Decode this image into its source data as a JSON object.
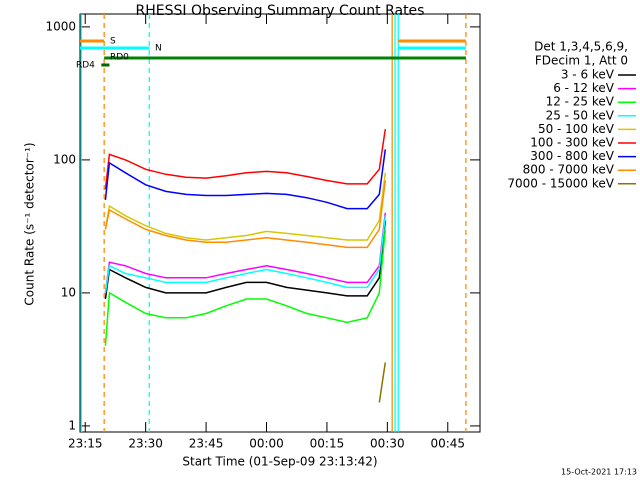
{
  "chart_data": {
    "type": "line",
    "title": "RHESSI Observing Summary Count Rates",
    "xlabel": "Start Time (01-Sep-09 23:13:42)",
    "ylabel": "Count Rate (s⁻¹ detector⁻¹)",
    "footer": "15-Oct-2021 17:13",
    "legend_header": [
      "Det 1,3,4,5,6,9,",
      "FDecim 1, Att 0"
    ],
    "log_y": true,
    "xlim": [
      13.7,
      113
    ],
    "ylim": [
      0.9,
      1250
    ],
    "xticks": [
      {
        "value": 15,
        "label": "23:15"
      },
      {
        "value": 30,
        "label": "23:30"
      },
      {
        "value": 45,
        "label": "23:45"
      },
      {
        "value": 60,
        "label": "00:00"
      },
      {
        "value": 75,
        "label": "00:15"
      },
      {
        "value": 90,
        "label": "00:30"
      },
      {
        "value": 105,
        "label": "00:45"
      }
    ],
    "yticks": [
      1,
      10,
      100,
      1000
    ],
    "x": [
      20,
      21,
      25,
      30,
      35,
      40,
      45,
      50,
      55,
      60,
      65,
      70,
      75,
      80,
      85,
      88,
      89.5
    ],
    "series": [
      {
        "name": "3 - 6 keV",
        "color": "#000000",
        "values": [
          9,
          15,
          13,
          11,
          10,
          10,
          10,
          11,
          12,
          12,
          11,
          10.5,
          10,
          9.5,
          9.5,
          13,
          35
        ]
      },
      {
        "name": "6 - 12 keV",
        "color": "#ff00ff",
        "values": [
          10,
          17,
          16,
          14,
          13,
          13,
          13,
          14,
          15,
          16,
          15,
          14,
          13,
          12,
          12,
          16,
          40
        ]
      },
      {
        "name": "12 - 25 keV",
        "color": "#00ff00",
        "values": [
          4,
          10,
          8.5,
          7,
          6.5,
          6.5,
          7,
          8,
          9,
          9,
          8,
          7,
          6.5,
          6,
          6.5,
          10,
          30
        ]
      },
      {
        "name": "25 - 50 keV",
        "color": "#00ffff",
        "values": [
          10,
          16,
          14,
          13,
          12,
          12,
          12,
          13,
          14,
          15,
          14,
          13,
          12,
          11,
          11,
          15,
          38
        ]
      },
      {
        "name": "50 - 100 keV",
        "color": "#d4c800",
        "values": [
          30,
          45,
          38,
          32,
          28,
          26,
          25,
          26,
          27,
          29,
          28,
          27,
          26,
          25,
          25,
          35,
          80
        ]
      },
      {
        "name": "100 - 300 keV",
        "color": "#ff0000",
        "values": [
          60,
          110,
          100,
          85,
          78,
          74,
          73,
          76,
          80,
          82,
          80,
          75,
          70,
          66,
          66,
          85,
          170
        ]
      },
      {
        "name": "300 - 800 keV",
        "color": "#0000ff",
        "values": [
          50,
          95,
          80,
          65,
          58,
          55,
          54,
          54,
          55,
          56,
          55,
          52,
          48,
          43,
          43,
          55,
          120
        ]
      },
      {
        "name": "800 - 7000 keV",
        "color": "#ff8c00",
        "values": [
          30,
          42,
          36,
          30,
          27,
          25,
          24,
          24,
          25,
          26,
          25,
          24,
          23,
          22,
          22,
          30,
          70
        ]
      },
      {
        "name": "7000 - 15000 keV",
        "color": "#8b7500",
        "values": [
          null,
          null,
          null,
          null,
          null,
          null,
          null,
          null,
          null,
          null,
          null,
          null,
          null,
          null,
          null,
          1.5,
          3
        ]
      }
    ],
    "markers": [
      {
        "x": 14,
        "color": "#00ffff",
        "style": "solid"
      },
      {
        "x": 19.7,
        "color": "#ff8c00",
        "style": "dashed"
      },
      {
        "x": 30.9,
        "color": "#00ffff",
        "style": "dashed"
      },
      {
        "x": 91.2,
        "color": "#ff8c00",
        "style": "solid"
      },
      {
        "x": 91.9,
        "color": "#00ffff",
        "style": "solid"
      },
      {
        "x": 92.7,
        "color": "#00ffff",
        "style": "solid"
      },
      {
        "x": 109.5,
        "color": "#ff8c00",
        "style": "dashed"
      }
    ],
    "flags": [
      {
        "label": "S",
        "color": "#ff8c00",
        "segments": [
          [
            13.7,
            19.7
          ],
          [
            92.7,
            109.5
          ]
        ]
      },
      {
        "label": "N",
        "color": "#00ffff",
        "segments": [
          [
            13.7,
            30.9
          ],
          [
            92.7,
            109.5
          ]
        ]
      },
      {
        "label": "RD0",
        "color": "#008000",
        "segments": [
          [
            19.7,
            109.5
          ]
        ]
      },
      {
        "label": "RD4",
        "color": "#006400",
        "segments": [
          [
            19.0,
            21.0
          ]
        ]
      }
    ]
  }
}
